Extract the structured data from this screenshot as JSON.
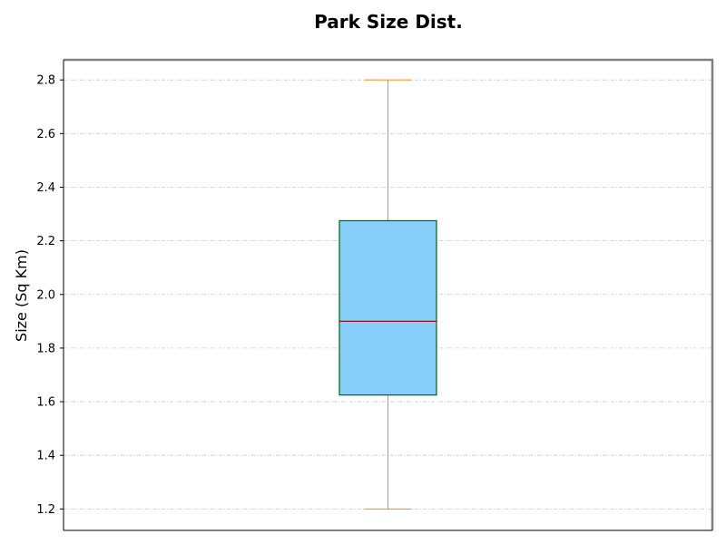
{
  "chart_data": {
    "type": "box",
    "title": "Park Size Dist.",
    "xlabel": "",
    "ylabel": "Size (Sq Km)",
    "ylim": [
      1.12,
      2.875
    ],
    "yticks": [
      1.2,
      1.4,
      1.6,
      1.8,
      2.0,
      2.2,
      2.4,
      2.6,
      2.8
    ],
    "ytick_labels": [
      "1.2",
      "1.4",
      "1.6",
      "1.8",
      "2.0",
      "2.2",
      "2.4",
      "2.6",
      "2.8"
    ],
    "grid": true,
    "boxes": [
      {
        "whisker_low": 1.2,
        "q1": 1.625,
        "median": 1.9,
        "q3": 2.275,
        "whisker_high": 2.8
      }
    ],
    "colors": {
      "box_fill": "#87cefa",
      "box_edge": "#006400",
      "median": "#8b0000",
      "whisker": "#ff8c00",
      "grid": "#c8c8c8",
      "spine_dark": "#000000",
      "spine_light": "#808080"
    }
  }
}
